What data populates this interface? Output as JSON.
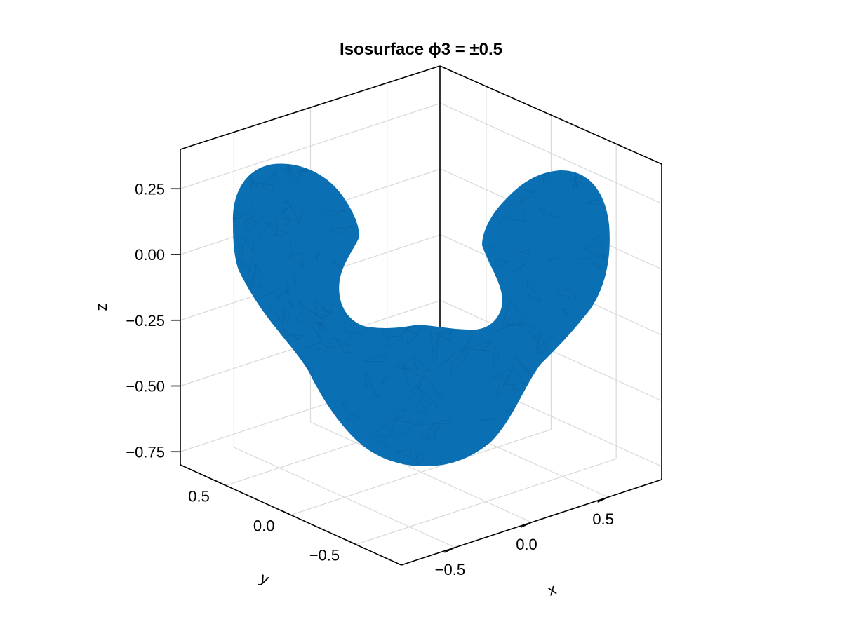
{
  "chart_data": {
    "type": "surface3d",
    "title": "Isosurface ϕ3 = ±0.5",
    "xlabel": "x",
    "ylabel": "y",
    "zlabel": "z",
    "x_ticks": [
      -0.5,
      0.0,
      0.5
    ],
    "y_ticks": [
      -0.5,
      0.0,
      0.5
    ],
    "z_ticks": [
      -0.75,
      -0.5,
      -0.25,
      0.0,
      0.25
    ],
    "x_tick_labels": [
      "−0.5",
      "0.0",
      "0.5"
    ],
    "y_tick_labels": [
      "−0.5",
      "0.0",
      "0.5"
    ],
    "z_tick_labels": [
      "−0.75",
      "−0.50",
      "−0.25",
      "0.00",
      "0.25"
    ],
    "xlim": [
      -0.85,
      0.85
    ],
    "ylim": [
      -0.85,
      0.85
    ],
    "zlim": [
      -0.8,
      0.4
    ],
    "grid": true,
    "surface_color": "#0a70b3",
    "isosurface_level": "±0.5"
  }
}
